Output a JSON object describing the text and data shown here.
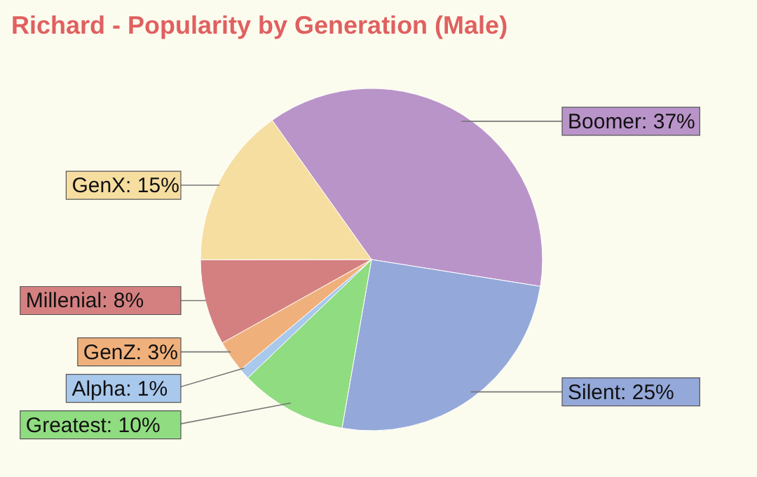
{
  "chart_data": {
    "type": "pie",
    "title": "Richard - Popularity by Generation (Male)",
    "categories": [
      "Boomer",
      "Silent",
      "Greatest",
      "Alpha",
      "GenZ",
      "Millenial",
      "GenX"
    ],
    "values": [
      37,
      25,
      10,
      1,
      3,
      8,
      15
    ],
    "colors": [
      "#b994c9",
      "#94a8d9",
      "#90dc80",
      "#a8c8ec",
      "#f0b07c",
      "#d48080",
      "#f5dea0"
    ],
    "value_labels": [
      "37%",
      "25%",
      "10%",
      "1%",
      "3%",
      "8%",
      "15%"
    ],
    "legend": false
  }
}
